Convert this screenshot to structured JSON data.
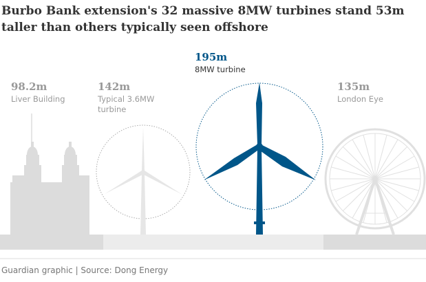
{
  "header": {
    "title": "Burbo Bank extension's 32 massive 8MW turbines stand 53m taller than others typically seen offshore"
  },
  "items": [
    {
      "height": "98.2m",
      "name": [
        "Liver Building"
      ]
    },
    {
      "height": "142m",
      "name": [
        "Typical 3.6MW",
        "turbine"
      ]
    },
    {
      "height": "195m",
      "name": [
        "8MW turbine"
      ]
    },
    {
      "height": "135m",
      "name": [
        "London Eye"
      ]
    }
  ],
  "footer": "Guardian graphic | Source: Dong Energy"
}
